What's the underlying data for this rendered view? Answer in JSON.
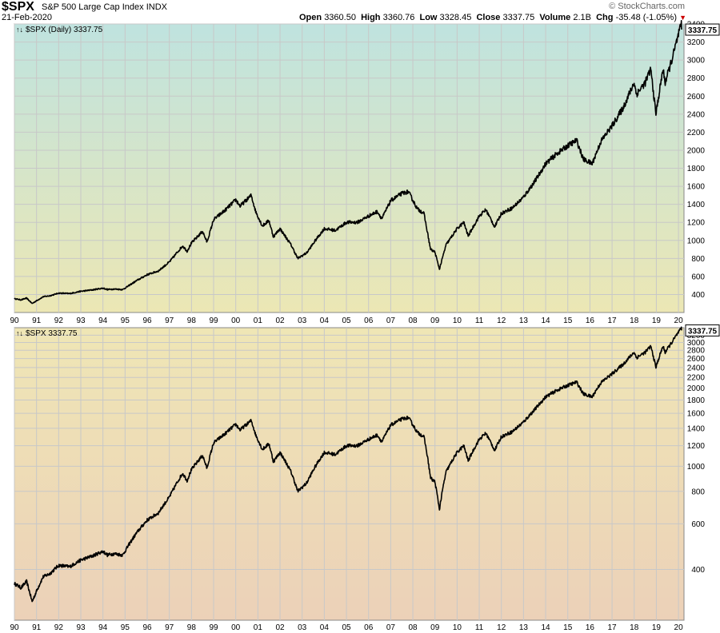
{
  "header": {
    "symbol": "$SPX",
    "description": "S&P 500 Large Cap Index",
    "exchange": "INDX",
    "date": "21-Feb-2020",
    "brand": "© StockCharts.com",
    "open_label": "Open",
    "open": "3360.50",
    "high_label": "High",
    "high": "3360.76",
    "low_label": "Low",
    "low": "3328.45",
    "close_label": "Close",
    "close": "3337.75",
    "volume_label": "Volume",
    "volume": "2.1B",
    "chg_label": "Chg",
    "chg": "-35.48 (-1.05%)"
  },
  "colors": {
    "line": "#000000",
    "grid": "#c8c8c8",
    "last_box": "#ffffff",
    "chg_down": "#cc0000"
  },
  "chart_data": [
    {
      "type": "line",
      "legend": "$SPX (Daily) 3337.75",
      "last_value_label": "3337.75",
      "scale": "linear",
      "ylim": [
        200,
        3400
      ],
      "y_ticks": [
        400,
        600,
        800,
        1000,
        1200,
        1400,
        1600,
        1800,
        2000,
        2200,
        2400,
        2600,
        2800,
        3000,
        3200,
        3400
      ],
      "x_ticks": [
        "90",
        "91",
        "92",
        "93",
        "94",
        "95",
        "96",
        "97",
        "98",
        "99",
        "00",
        "01",
        "02",
        "03",
        "04",
        "05",
        "06",
        "07",
        "08",
        "09",
        "10",
        "11",
        "12",
        "13",
        "14",
        "15",
        "16",
        "17",
        "18",
        "19",
        "20"
      ],
      "xlim": [
        1990.0,
        2020.25
      ],
      "grid": true
    },
    {
      "type": "line",
      "legend": "$SPX 3337.75",
      "last_value_label": "3337.75",
      "scale": "log",
      "ylim": [
        255,
        3420
      ],
      "y_ticks": [
        400,
        600,
        800,
        1000,
        1200,
        1400,
        1600,
        1800,
        2000,
        2200,
        2400,
        2600,
        2800,
        3000,
        3200
      ],
      "x_ticks": [
        "90",
        "91",
        "92",
        "93",
        "94",
        "95",
        "96",
        "97",
        "98",
        "99",
        "00",
        "01",
        "02",
        "03",
        "04",
        "05",
        "06",
        "07",
        "08",
        "09",
        "10",
        "11",
        "12",
        "13",
        "14",
        "15",
        "16",
        "17",
        "18",
        "19",
        "20"
      ],
      "xlim": [
        1990.0,
        2020.25
      ],
      "grid": true
    }
  ],
  "series": {
    "name": "$SPX",
    "x": [
      1990.0,
      1990.3,
      1990.55,
      1990.8,
      1991.0,
      1991.3,
      1991.6,
      1992.0,
      1992.5,
      1993.0,
      1993.5,
      1994.0,
      1994.2,
      1994.5,
      1994.9,
      1995.5,
      1996.0,
      1996.5,
      1997.0,
      1997.6,
      1997.8,
      1998.0,
      1998.5,
      1998.7,
      1999.0,
      1999.5,
      2000.0,
      2000.2,
      2000.7,
      2000.9,
      2001.2,
      2001.5,
      2001.7,
      2002.0,
      2002.5,
      2002.8,
      2003.2,
      2003.6,
      2004.0,
      2004.5,
      2005.0,
      2005.5,
      2006.0,
      2006.4,
      2006.6,
      2007.0,
      2007.5,
      2007.8,
      2008.2,
      2008.5,
      2008.8,
      2009.0,
      2009.2,
      2009.5,
      2010.0,
      2010.3,
      2010.5,
      2011.0,
      2011.3,
      2011.7,
      2012.0,
      2012.5,
      2013.0,
      2013.5,
      2014.0,
      2014.5,
      2015.0,
      2015.4,
      2015.7,
      2016.1,
      2016.5,
      2017.0,
      2017.5,
      2018.0,
      2018.1,
      2018.5,
      2018.75,
      2018.98,
      2019.3,
      2019.4,
      2019.7,
      2020.0,
      2020.13,
      2020.14
    ],
    "y": [
      353,
      340,
      360,
      300,
      330,
      375,
      385,
      415,
      410,
      435,
      450,
      470,
      455,
      460,
      455,
      550,
      620,
      660,
      760,
      940,
      880,
      970,
      1100,
      980,
      1230,
      1330,
      1450,
      1380,
      1500,
      1320,
      1160,
      1220,
      1040,
      1130,
      950,
      800,
      860,
      1000,
      1130,
      1110,
      1200,
      1200,
      1270,
      1320,
      1240,
      1440,
      1520,
      1540,
      1350,
      1300,
      900,
      870,
      680,
      950,
      1130,
      1200,
      1050,
      1270,
      1340,
      1150,
      1300,
      1360,
      1480,
      1650,
      1850,
      1960,
      2050,
      2110,
      1900,
      1850,
      2100,
      2270,
      2470,
      2750,
      2620,
      2750,
      2900,
      2400,
      2900,
      2750,
      3000,
      3280,
      3390,
      3337.75
    ]
  }
}
